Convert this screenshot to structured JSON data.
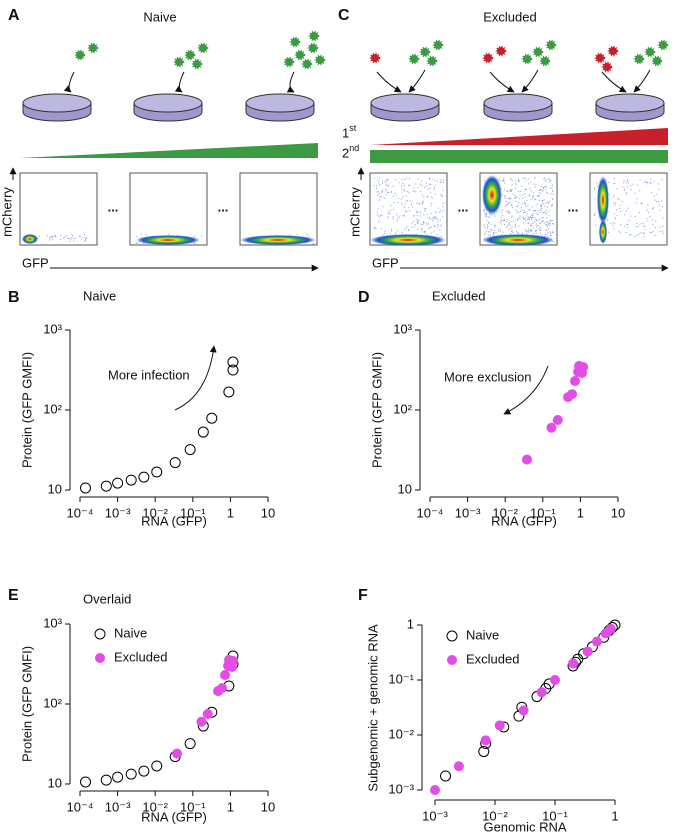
{
  "diagrams": [
    {
      "label": "A",
      "title": "Naive",
      "y_axis": "mCherry",
      "x_axis": "GFP",
      "separator": "..."
    },
    {
      "label": "C",
      "title": "Excluded",
      "layers": [
        "1st",
        "2nd"
      ],
      "y_axis": "mCherry",
      "x_axis": "GFP",
      "separator": "..."
    }
  ],
  "chart_data": [
    {
      "type": "scatter",
      "panel": "B",
      "title": "Naive",
      "x_label": "RNA (GFP)",
      "y_label": "Protein (GFP GMFI)",
      "log_x": true,
      "log_y": true,
      "xlim": [
        0.0001,
        10
      ],
      "ylim": [
        10,
        1000
      ],
      "xticks": [
        {
          "value": 0.0001,
          "label": "10⁻⁴"
        },
        {
          "value": 0.001,
          "label": "10⁻³"
        },
        {
          "value": 0.01,
          "label": "10⁻²"
        },
        {
          "value": 0.1,
          "label": "10⁻¹"
        },
        1,
        10
      ],
      "yticks": [
        10,
        {
          "value": 100,
          "label": "10²"
        },
        {
          "value": 1000,
          "label": "10³"
        }
      ],
      "annotations": [
        {
          "text": "More infection"
        }
      ],
      "series": [
        {
          "color": "#000000",
          "filled": false,
          "x": [
            0.00014,
            0.0005,
            0.001,
            0.0023,
            0.005,
            0.011,
            0.034,
            0.085,
            0.19,
            0.32,
            0.91,
            1.17,
            1.17
          ],
          "values": [
            10.6,
            11.2,
            12.2,
            13.3,
            14.5,
            16.8,
            22,
            32,
            53,
            79,
            168,
            316,
            398
          ]
        }
      ]
    },
    {
      "type": "scatter",
      "panel": "D",
      "title": "Excluded",
      "x_label": "RNA (GFP)",
      "y_label": "Protein (GFP GMFI)",
      "log_x": true,
      "log_y": true,
      "xlim": [
        0.0001,
        10
      ],
      "ylim": [
        10,
        1000
      ],
      "xticks": [
        {
          "value": 0.0001,
          "label": "10⁻⁴"
        },
        {
          "value": 0.001,
          "label": "10⁻³"
        },
        {
          "value": 0.01,
          "label": "10⁻²"
        },
        {
          "value": 0.1,
          "label": "10⁻¹"
        },
        1,
        10
      ],
      "yticks": [
        10,
        {
          "value": 100,
          "label": "10²"
        },
        {
          "value": 1000,
          "label": "10³"
        }
      ],
      "annotations": [
        {
          "text": "More exclusion"
        }
      ],
      "series": [
        {
          "color": "#e24de6",
          "filled": true,
          "x": [
            0.038,
            0.17,
            0.25,
            0.47,
            0.6,
            0.72,
            0.87,
            0.92,
            1.1,
            1.18
          ],
          "values": [
            24,
            60,
            75,
            145,
            158,
            230,
            300,
            355,
            290,
            345
          ]
        }
      ]
    },
    {
      "type": "scatter",
      "panel": "E",
      "title": "Overlaid",
      "x_label": "RNA (GFP)",
      "y_label": "Protein (GFP GMFI)",
      "log_x": true,
      "log_y": true,
      "xlim": [
        0.0001,
        10
      ],
      "ylim": [
        10,
        1000
      ],
      "legend": "upper left",
      "xticks": [
        {
          "value": 0.0001,
          "label": "10⁻⁴"
        },
        {
          "value": 0.001,
          "label": "10⁻³"
        },
        {
          "value": 0.01,
          "label": "10⁻²"
        },
        {
          "value": 0.1,
          "label": "10⁻¹"
        },
        1,
        10
      ],
      "yticks": [
        10,
        {
          "value": 100,
          "label": "10²"
        },
        {
          "value": 1000,
          "label": "10³"
        }
      ],
      "series": [
        {
          "name": "Naive",
          "color": "#000000",
          "filled": false,
          "x": [
            0.00014,
            0.0005,
            0.001,
            0.0023,
            0.005,
            0.011,
            0.034,
            0.085,
            0.19,
            0.32,
            0.91,
            1.17,
            1.17
          ],
          "values": [
            10.6,
            11.2,
            12.2,
            13.3,
            14.5,
            16.8,
            22,
            32,
            53,
            79,
            168,
            316,
            398
          ]
        },
        {
          "name": "Excluded",
          "color": "#e24de6",
          "filled": true,
          "x": [
            0.038,
            0.17,
            0.25,
            0.47,
            0.6,
            0.72,
            0.87,
            0.92,
            1.1,
            1.18
          ],
          "values": [
            24,
            60,
            75,
            145,
            158,
            230,
            300,
            355,
            290,
            345
          ]
        }
      ]
    },
    {
      "type": "scatter",
      "panel": "F",
      "x_label": "Genomic RNA",
      "y_label": "Subgenomic + genomic RNA",
      "log_x": true,
      "log_y": true,
      "xlim": [
        0.001,
        1
      ],
      "ylim": [
        0.001,
        1
      ],
      "legend": "upper left",
      "xticks": [
        {
          "value": 0.001,
          "label": "10⁻³"
        },
        {
          "value": 0.01,
          "label": "10⁻²"
        },
        {
          "value": 0.1,
          "label": "10⁻¹"
        },
        1
      ],
      "yticks": [
        {
          "value": 0.001,
          "label": "10⁻³"
        },
        {
          "value": 0.01,
          "label": "10⁻²"
        },
        {
          "value": 0.1,
          "label": "10⁻¹"
        },
        1
      ],
      "series": [
        {
          "name": "Naive",
          "color": "#000000",
          "filled": false,
          "x": [
            0.0015,
            0.0065,
            0.007,
            0.014,
            0.025,
            0.028,
            0.05,
            0.07,
            0.08,
            0.2,
            0.22,
            0.24,
            0.3,
            0.42,
            0.65,
            0.8,
            0.9,
            1.0
          ],
          "values": [
            0.0018,
            0.005,
            0.007,
            0.014,
            0.022,
            0.032,
            0.05,
            0.07,
            0.085,
            0.18,
            0.21,
            0.24,
            0.3,
            0.4,
            0.6,
            0.8,
            0.9,
            1.0
          ]
        },
        {
          "name": "Excluded",
          "color": "#e24de6",
          "filled": true,
          "x": [
            0.001,
            0.0025,
            0.007,
            0.012,
            0.03,
            0.06,
            0.1,
            0.2,
            0.35,
            0.5,
            0.7,
            0.85
          ],
          "values": [
            0.001,
            0.0027,
            0.008,
            0.015,
            0.028,
            0.06,
            0.1,
            0.2,
            0.33,
            0.5,
            0.7,
            0.85
          ]
        }
      ]
    }
  ]
}
